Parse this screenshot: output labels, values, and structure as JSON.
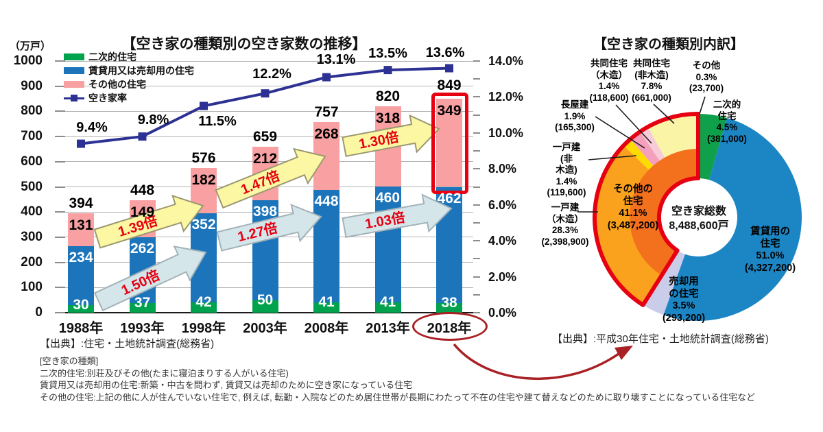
{
  "colors": {
    "bar_green": "#00A24D",
    "bar_blue": "#1C75BB",
    "bar_pink": "#F8A0A2",
    "rate_line_navy": "#2D3193",
    "highlight_red": "#E60012",
    "annotation_dark_red": "#A92025",
    "yellow_arrow_fill": "#FBF7A3",
    "yellow_arrow_stroke": "#9B9870",
    "blue_arrow_fill": "#D4E6EA",
    "blue_arrow_stroke": "#A3B2B8",
    "multiplier_text_red": "#E60012",
    "grid_gray": "#b3b3b3",
    "donut_green": "#0FA04C",
    "donut_blue": "#1C86C4",
    "donut_lavender": "#C9CDEA",
    "donut_orange_outer": "#FAA21E",
    "donut_orange_inner": "#F3701D",
    "donut_gold": "#FFDC00",
    "donut_rose": "#F49FBB",
    "donut_lightpink": "#F8CBD8",
    "donut_paleyellow": "#FAF5A6",
    "donut_sliver": "#FDFAD8"
  },
  "left_chart": {
    "title": "【空き家の種類別の空き家数の推移】",
    "unit_label": "（万戸）",
    "y_left_ticks": [
      "1000",
      "900",
      "800",
      "700",
      "600",
      "500",
      "400",
      "300",
      "200",
      "100",
      "0"
    ],
    "y_right_ticks": [
      "14.0%",
      "12.0%",
      "10.0%",
      "8.0%",
      "6.0%",
      "4.0%",
      "2.0%",
      "0.0%"
    ],
    "legend": [
      {
        "label": "二次的住宅",
        "type": "green"
      },
      {
        "label": "賃貸用又は売却用の住宅",
        "type": "blue"
      },
      {
        "label": "その他の住宅",
        "type": "pink"
      },
      {
        "label": "空き家率",
        "type": "line"
      }
    ],
    "source": "【出典】:住宅・土地統計調査(総務省)",
    "multipliers": [
      {
        "label": "1.39倍",
        "style": "yellow"
      },
      {
        "label": "1.47倍",
        "style": "yellow"
      },
      {
        "label": "1.30倍",
        "style": "yellow"
      },
      {
        "label": "1.50倍",
        "style": "blue"
      },
      {
        "label": "1.27倍",
        "style": "blue"
      },
      {
        "label": "1.03倍",
        "style": "blue"
      }
    ]
  },
  "right_chart": {
    "title": "【空き家の種類別内訳】",
    "source": "【出典】:平成30年住宅・土地統計調査(総務省)",
    "center_title": "空き家総数",
    "center_value": "8,488,600戸"
  },
  "notes": {
    "lines": [
      "[空き家の種類]",
      "二次的住宅:別荘及びその他(たまに寝泊まりする人がいる住宅)",
      "賃貸用又は売却用の住宅:新築・中古を問わず, 賃貸又は売却のために空き家になっている住宅",
      "その他の住宅:上記の他に人が住んでいない住宅で, 例えば, 転勤・入院などのため居住世帯が長期にわたって不在の住宅や建て替えなどのために取り壊すことになっている住宅など"
    ]
  },
  "chart_data": [
    {
      "type": "bar",
      "subtype": "stacked-bars-with-line",
      "title": "空き家の種類別の空き家数の推移",
      "categories": [
        "1988年",
        "1993年",
        "1998年",
        "2003年",
        "2008年",
        "2013年",
        "2018年"
      ],
      "series": [
        {
          "name": "二次的住宅",
          "values": [
            30,
            37,
            42,
            50,
            41,
            41,
            38
          ]
        },
        {
          "name": "賃貸用又は売却用の住宅",
          "values": [
            234,
            262,
            352,
            398,
            448,
            460,
            462
          ]
        },
        {
          "name": "その他の住宅",
          "values": [
            131,
            149,
            182,
            212,
            268,
            318,
            349
          ]
        }
      ],
      "totals": [
        394,
        448,
        576,
        659,
        757,
        820,
        849
      ],
      "line": {
        "name": "空き家率",
        "values": [
          9.4,
          9.8,
          11.5,
          12.2,
          13.1,
          13.5,
          13.6
        ]
      },
      "ylabel_left": "万戸",
      "ylabel_right": "%",
      "ylim_left": [
        0,
        1000
      ],
      "ylim_right": [
        0,
        14
      ],
      "grid": true,
      "legend_position": "top-left",
      "highlighted_category": "2018年"
    },
    {
      "type": "pie",
      "subtype": "donut",
      "title": "空き家の種類別内訳",
      "center": {
        "label": "空き家総数",
        "value": "8,488,600戸"
      },
      "slices": [
        {
          "name": "二次的\n住宅",
          "pct": 4.5,
          "value_label": "(381,000)"
        },
        {
          "name": "賃貸用の\n住宅",
          "pct": 51.0,
          "value_label": "(4,327,200)"
        },
        {
          "name": "売却用\nの住宅",
          "pct": 3.5,
          "value_label": "(293,200)"
        },
        {
          "name": "一戸建\n（木造）",
          "pct": 28.3,
          "value_label": "(2,398,900)"
        },
        {
          "name": "一戸建(非\n木造)",
          "pct": 1.4,
          "value_label": "(119,600)"
        },
        {
          "name": "長屋建",
          "pct": 1.9,
          "value_label": "(165,300)"
        },
        {
          "name": "共同住宅\n（木造）",
          "pct": 1.4,
          "value_label": "(118,600)"
        },
        {
          "name": "共同住宅\n(非木造)",
          "pct": 7.8,
          "value_label": "(661,000)"
        },
        {
          "name": "その他",
          "pct": 0.3,
          "value_label": "(23,700)"
        }
      ],
      "group": {
        "name": "その他の\n住宅",
        "pct": 41.1,
        "value_label": "(3,487,200)",
        "member_indices": [
          3,
          4,
          5,
          6,
          7,
          8
        ]
      }
    }
  ]
}
